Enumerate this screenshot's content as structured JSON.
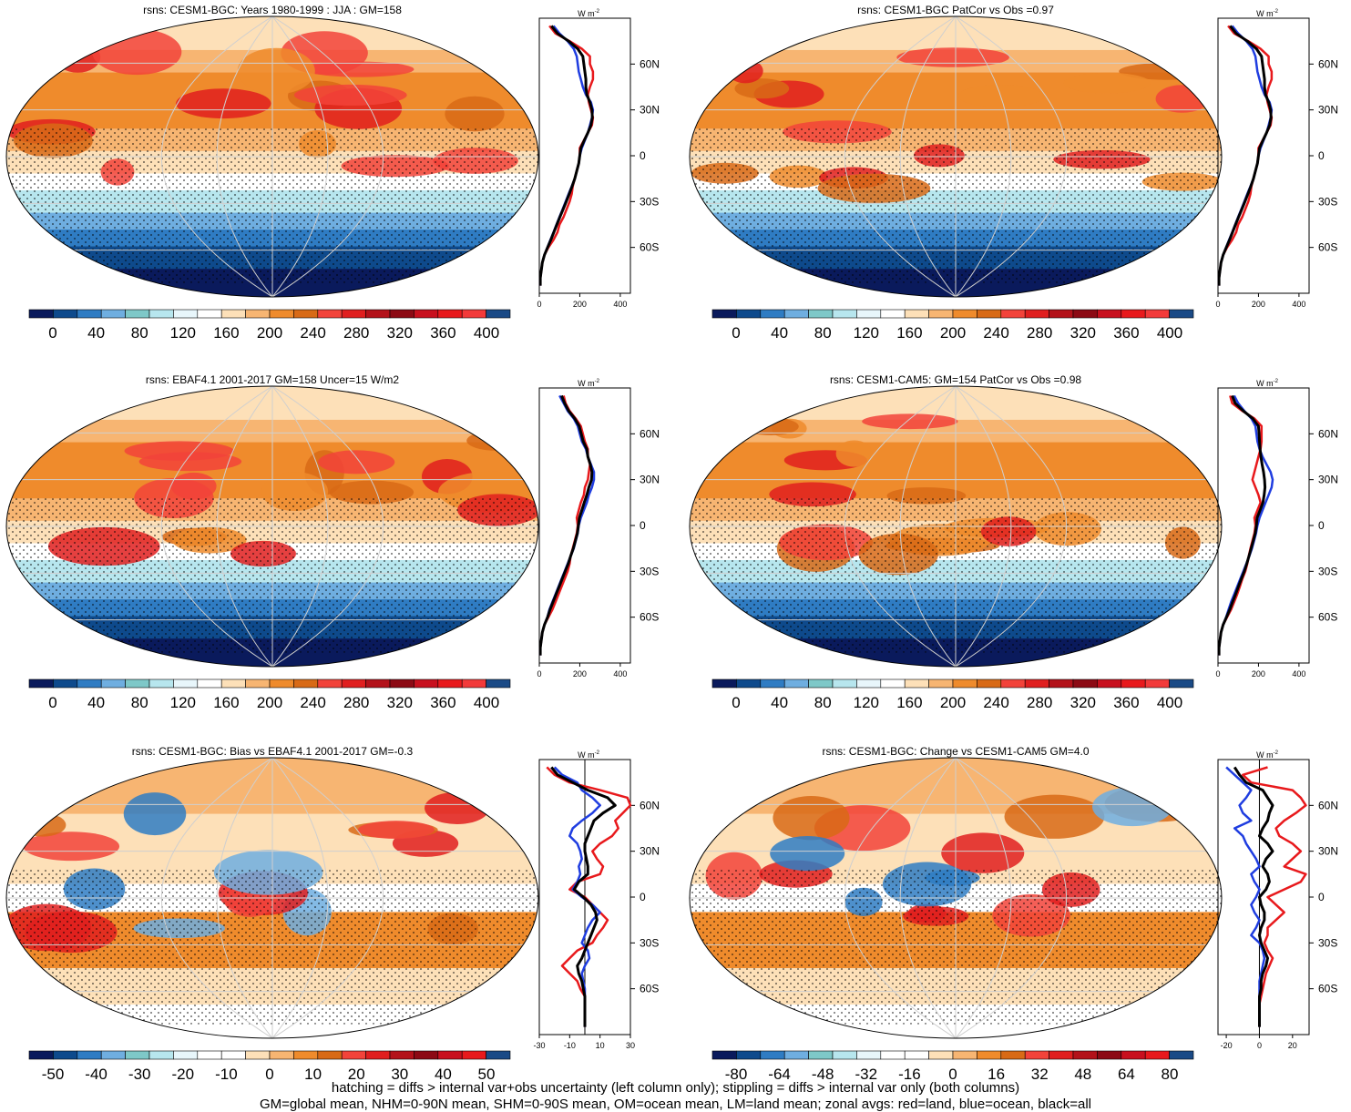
{
  "footer": {
    "line1": "hatching = diffs > internal var+obs uncertainty (left column only); stippling = diffs > internal var only (both columns)",
    "line2": "GM=global mean, NHM=0-90N mean, SHM=0-90S mean, OM=ocean mean, LM=land mean; zonal avgs: red=land, blue=ocean, black=all"
  },
  "lat_labels": [
    "60N",
    "30N",
    "0",
    "30S",
    "60S"
  ],
  "unit_label": "W m",
  "unit_exp": "-2",
  "colors": {
    "land": "#e8191c",
    "ocean": "#1f3de0",
    "all": "#000000"
  },
  "chart_data": [
    {
      "type": "heatmap",
      "title": "rsns: CESM1-BGC: Years 1980-1999 : JJA : GM=158",
      "colorbar_ticks": [
        "0",
        "40",
        "80",
        "120",
        "160",
        "200",
        "240",
        "280",
        "320",
        "360",
        "400"
      ],
      "profile_ticks": [
        "0",
        "200",
        "400"
      ],
      "xlim": [
        0,
        450
      ],
      "lat": [
        85,
        80,
        75,
        70,
        65,
        60,
        55,
        50,
        45,
        40,
        35,
        30,
        25,
        20,
        15,
        10,
        5,
        0,
        -5,
        -10,
        -15,
        -20,
        -25,
        -30,
        -35,
        -40,
        -45,
        -50,
        -55,
        -60,
        -65,
        -70,
        -75,
        -80,
        -85
      ],
      "series": [
        {
          "role": "land",
          "values": [
            50,
            80,
            150,
            210,
            250,
            250,
            265,
            265,
            250,
            240,
            245,
            255,
            265,
            260,
            240,
            220,
            200,
            200,
            195,
            185,
            175,
            165,
            160,
            150,
            135,
            120,
            100,
            90,
            70,
            45,
            25,
            15,
            10,
            5,
            5
          ]
        },
        {
          "role": "ocean",
          "values": [
            70,
            100,
            140,
            170,
            185,
            190,
            195,
            205,
            215,
            230,
            255,
            265,
            260,
            250,
            240,
            225,
            210,
            200,
            195,
            185,
            175,
            160,
            145,
            130,
            115,
            100,
            85,
            70,
            55,
            40,
            25,
            15,
            10,
            5,
            5
          ]
        },
        {
          "role": "all",
          "values": [
            60,
            90,
            145,
            190,
            215,
            220,
            225,
            230,
            230,
            235,
            250,
            260,
            262,
            255,
            240,
            222,
            205,
            200,
            195,
            185,
            175,
            162,
            148,
            133,
            118,
            102,
            87,
            72,
            57,
            41,
            25,
            15,
            10,
            5,
            5
          ]
        }
      ]
    },
    {
      "type": "heatmap",
      "title": "rsns: CESM1-BGC PatCor vs Obs =0.97",
      "colorbar_ticks": [
        "0",
        "40",
        "80",
        "120",
        "160",
        "200",
        "240",
        "280",
        "320",
        "360",
        "400"
      ],
      "profile_ticks": [
        "0",
        "200",
        "400"
      ],
      "xlim": [
        0,
        450
      ],
      "lat": [
        85,
        80,
        75,
        70,
        65,
        60,
        55,
        50,
        45,
        40,
        35,
        30,
        25,
        20,
        15,
        10,
        5,
        0,
        -5,
        -10,
        -15,
        -20,
        -25,
        -30,
        -35,
        -40,
        -45,
        -50,
        -55,
        -60,
        -65,
        -70,
        -75,
        -80,
        -85
      ],
      "series": [
        {
          "role": "land",
          "values": [
            50,
            80,
            150,
            210,
            250,
            250,
            265,
            265,
            250,
            240,
            245,
            255,
            265,
            260,
            240,
            220,
            200,
            200,
            195,
            185,
            175,
            165,
            160,
            150,
            135,
            120,
            100,
            90,
            70,
            45,
            25,
            15,
            10,
            5,
            5
          ]
        },
        {
          "role": "ocean",
          "values": [
            70,
            100,
            140,
            170,
            185,
            190,
            195,
            205,
            215,
            230,
            255,
            265,
            260,
            250,
            240,
            225,
            210,
            200,
            195,
            185,
            175,
            160,
            145,
            130,
            115,
            100,
            85,
            70,
            55,
            40,
            25,
            15,
            10,
            5,
            5
          ]
        },
        {
          "role": "all",
          "values": [
            60,
            90,
            145,
            190,
            215,
            220,
            225,
            230,
            230,
            235,
            250,
            260,
            262,
            255,
            240,
            222,
            205,
            200,
            195,
            185,
            175,
            162,
            148,
            133,
            118,
            102,
            87,
            72,
            57,
            41,
            25,
            15,
            10,
            5,
            5
          ]
        }
      ]
    },
    {
      "type": "heatmap",
      "title": "rsns: EBAF4.1 2001-2017 GM=158 Uncer=15 W/m2",
      "colorbar_ticks": [
        "0",
        "40",
        "80",
        "120",
        "160",
        "200",
        "240",
        "280",
        "320",
        "360",
        "400"
      ],
      "profile_ticks": [
        "0",
        "200",
        "400"
      ],
      "xlim": [
        0,
        450
      ],
      "lat": [
        85,
        80,
        75,
        70,
        65,
        60,
        55,
        50,
        45,
        40,
        35,
        30,
        25,
        20,
        15,
        10,
        5,
        0,
        -5,
        -10,
        -15,
        -20,
        -25,
        -30,
        -35,
        -40,
        -45,
        -50,
        -55,
        -60,
        -65,
        -70,
        -75,
        -80,
        -85
      ],
      "series": [
        {
          "role": "land",
          "values": [
            120,
            130,
            150,
            180,
            205,
            215,
            225,
            240,
            240,
            250,
            245,
            240,
            225,
            220,
            205,
            195,
            185,
            190,
            185,
            175,
            165,
            155,
            150,
            140,
            125,
            110,
            95,
            80,
            65,
            45,
            25,
            15,
            10,
            5,
            5
          ]
        },
        {
          "role": "ocean",
          "values": [
            100,
            120,
            140,
            170,
            190,
            200,
            210,
            230,
            240,
            255,
            270,
            270,
            260,
            245,
            235,
            220,
            205,
            195,
            190,
            180,
            170,
            155,
            140,
            125,
            110,
            95,
            80,
            65,
            50,
            40,
            25,
            15,
            10,
            5,
            5
          ]
        },
        {
          "role": "all",
          "values": [
            110,
            125,
            145,
            175,
            197,
            207,
            217,
            235,
            240,
            252,
            260,
            258,
            245,
            235,
            222,
            210,
            198,
            193,
            188,
            178,
            168,
            155,
            143,
            128,
            113,
            98,
            83,
            68,
            53,
            41,
            25,
            15,
            10,
            5,
            5
          ]
        }
      ]
    },
    {
      "type": "heatmap",
      "title": "rsns: CESM1-CAM5: GM=154 PatCor vs Obs =0.98",
      "colorbar_ticks": [
        "0",
        "40",
        "80",
        "120",
        "160",
        "200",
        "240",
        "280",
        "320",
        "360",
        "400"
      ],
      "profile_ticks": [
        "0",
        "200",
        "400"
      ],
      "xlim": [
        0,
        450
      ],
      "lat": [
        85,
        80,
        75,
        70,
        65,
        60,
        55,
        50,
        45,
        40,
        35,
        30,
        25,
        20,
        15,
        10,
        5,
        0,
        -5,
        -10,
        -15,
        -20,
        -25,
        -30,
        -35,
        -40,
        -45,
        -50,
        -55,
        -60,
        -65,
        -70,
        -75,
        -80,
        -85
      ],
      "series": [
        {
          "role": "land",
          "values": [
            60,
            70,
            120,
            180,
            215,
            215,
            215,
            210,
            200,
            190,
            180,
            170,
            185,
            200,
            210,
            195,
            180,
            185,
            180,
            170,
            160,
            152,
            145,
            135,
            120,
            108,
            95,
            80,
            65,
            45,
            25,
            15,
            10,
            5,
            5
          ]
        },
        {
          "role": "ocean",
          "values": [
            80,
            100,
            130,
            165,
            185,
            190,
            195,
            205,
            220,
            240,
            260,
            270,
            265,
            250,
            235,
            220,
            205,
            195,
            188,
            178,
            168,
            155,
            140,
            125,
            110,
            95,
            80,
            65,
            52,
            40,
            25,
            15,
            10,
            5,
            5
          ]
        },
        {
          "role": "all",
          "values": [
            70,
            85,
            125,
            172,
            200,
            203,
            205,
            208,
            212,
            218,
            225,
            230,
            232,
            228,
            222,
            208,
            193,
            190,
            184,
            174,
            164,
            153,
            142,
            130,
            115,
            101,
            87,
            72,
            58,
            42,
            25,
            15,
            10,
            5,
            5
          ]
        }
      ]
    },
    {
      "type": "heatmap",
      "title": "rsns: CESM1-BGC: Bias vs EBAF4.1 2001-2017 GM=-0.3",
      "colorbar_ticks": [
        "-50",
        "-40",
        "-30",
        "-20",
        "-10",
        "0",
        "10",
        "20",
        "30",
        "40",
        "50"
      ],
      "profile_ticks": [
        "-30",
        "-10",
        "10",
        "30"
      ],
      "xlim": [
        -30,
        30
      ],
      "lat": [
        85,
        80,
        75,
        70,
        65,
        60,
        55,
        50,
        45,
        40,
        35,
        30,
        25,
        20,
        15,
        10,
        5,
        0,
        -5,
        -10,
        -15,
        -20,
        -25,
        -30,
        -35,
        -40,
        -45,
        -50,
        -55,
        -60,
        -65,
        -70,
        -75,
        -80,
        -85
      ],
      "series": [
        {
          "role": "land",
          "values": [
            -25,
            -20,
            -10,
            10,
            28,
            30,
            25,
            20,
            22,
            18,
            10,
            5,
            8,
            12,
            10,
            -5,
            -10,
            0,
            5,
            10,
            15,
            12,
            8,
            5,
            -5,
            -10,
            -15,
            -10,
            -5,
            -3,
            0,
            0,
            0,
            0,
            0
          ]
        },
        {
          "role": "ocean",
          "values": [
            -20,
            -15,
            -5,
            -2,
            5,
            10,
            5,
            -2,
            -8,
            -10,
            -5,
            -3,
            -2,
            -4,
            -3,
            -5,
            -8,
            -2,
            5,
            10,
            5,
            2,
            0,
            -2,
            2,
            3,
            0,
            -2,
            -1,
            0,
            0,
            0,
            0,
            0,
            0
          ]
        },
        {
          "role": "all",
          "values": [
            -22,
            -18,
            -8,
            2,
            15,
            20,
            12,
            6,
            4,
            2,
            0,
            0,
            1,
            2,
            2,
            -4,
            -7,
            -1,
            4,
            7,
            8,
            6,
            4,
            2,
            0,
            -2,
            -5,
            -4,
            -2,
            -1,
            0,
            0,
            0,
            0,
            0
          ]
        }
      ]
    },
    {
      "type": "heatmap",
      "title": "rsns: CESM1-BGC: Change vs CESM1-CAM5 GM=4.0",
      "colorbar_ticks": [
        "-80",
        "-64",
        "-48",
        "-32",
        "-16",
        "0",
        "16",
        "32",
        "48",
        "64",
        "80"
      ],
      "profile_ticks": [
        "-20",
        "0",
        "20"
      ],
      "xlim": [
        -25,
        30
      ],
      "lat": [
        85,
        80,
        75,
        70,
        65,
        60,
        55,
        50,
        45,
        40,
        35,
        30,
        25,
        20,
        15,
        10,
        5,
        0,
        -5,
        -10,
        -15,
        -20,
        -25,
        -30,
        -35,
        -40,
        -45,
        -50,
        -55,
        -60,
        -65,
        -70,
        -75,
        -80,
        -85
      ],
      "series": [
        {
          "role": "land",
          "values": [
            5,
            -10,
            -5,
            20,
            25,
            28,
            22,
            15,
            10,
            12,
            20,
            25,
            20,
            15,
            28,
            25,
            15,
            5,
            10,
            15,
            10,
            5,
            5,
            3,
            5,
            8,
            6,
            4,
            3,
            2,
            1,
            0,
            0,
            0,
            0
          ]
        },
        {
          "role": "ocean",
          "values": [
            -20,
            -15,
            -10,
            -5,
            -8,
            -12,
            -10,
            -5,
            -15,
            -10,
            -8,
            -5,
            -2,
            0,
            -5,
            -3,
            0,
            -2,
            -5,
            -3,
            0,
            -2,
            -5,
            0,
            2,
            3,
            2,
            1,
            0,
            0,
            0,
            0,
            0,
            0,
            0
          ]
        },
        {
          "role": "all",
          "values": [
            -15,
            -12,
            -8,
            2,
            5,
            8,
            6,
            5,
            2,
            0,
            5,
            8,
            4,
            2,
            5,
            6,
            4,
            0,
            1,
            3,
            3,
            1,
            0,
            1,
            3,
            5,
            4,
            2,
            1,
            1,
            0,
            0,
            0,
            0,
            0
          ]
        }
      ]
    }
  ]
}
